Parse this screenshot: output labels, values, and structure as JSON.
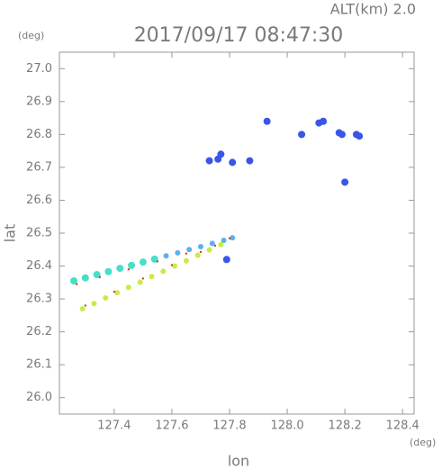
{
  "chart_data": {
    "type": "scatter",
    "title": "2017/09/17 08:47:30",
    "subtitle": "ALT(km)  2.0",
    "x_label": "lon",
    "y_label": "lat",
    "x_unit": "(deg)",
    "y_unit": "(deg)",
    "xlim": [
      127.21,
      128.44
    ],
    "ylim": [
      25.95,
      27.05
    ],
    "xticks": [
      127.4,
      127.6,
      127.8,
      {
        "value": 128.0,
        "label": "128.0"
      },
      128.2,
      128.4
    ],
    "yticks": [
      {
        "value": 26.0,
        "label": "26.0"
      },
      26.1,
      26.2,
      26.3,
      26.4,
      26.5,
      26.6,
      26.7,
      26.8,
      26.9,
      {
        "value": 27.0,
        "label": "27.0"
      }
    ],
    "series": [
      {
        "color": "#3a55e8",
        "size": 4,
        "x": [
          128.11,
          128.125,
          128.18,
          128.19,
          128.24,
          128.25,
          127.77,
          127.76,
          127.81,
          127.93,
          128.2,
          127.79,
          127.73,
          128.05,
          127.87
        ],
        "values": [
          26.835,
          26.84,
          26.805,
          26.8,
          26.8,
          26.795,
          26.74,
          26.725,
          26.715,
          26.84,
          26.655,
          26.42,
          26.72,
          26.8,
          26.72
        ]
      },
      {
        "color": "#44e0c8",
        "size": 4,
        "x": [
          127.26,
          127.3,
          127.34,
          127.38,
          127.42,
          127.46,
          127.5,
          127.54
        ],
        "values": [
          26.355,
          26.364,
          26.374,
          26.383,
          26.393,
          26.402,
          26.412,
          26.421
        ]
      },
      {
        "color": "#5ab0f0",
        "size": 3,
        "x": [
          127.58,
          127.62,
          127.66,
          127.7,
          127.74,
          127.78,
          127.81
        ],
        "values": [
          26.431,
          26.44,
          26.45,
          26.459,
          26.469,
          26.478,
          26.486
        ]
      },
      {
        "color": "#c8ec46",
        "size": 3,
        "x": [
          127.29,
          127.33,
          127.37,
          127.41,
          127.45,
          127.49,
          127.53,
          127.57,
          127.61,
          127.65,
          127.69,
          127.73,
          127.77
        ],
        "values": [
          26.27,
          26.286,
          26.303,
          26.319,
          26.335,
          26.351,
          26.368,
          26.384,
          26.4,
          26.416,
          26.433,
          26.449,
          26.465
        ]
      },
      {
        "color": "#e03818",
        "size": 1.2,
        "x": [
          127.27,
          127.35,
          127.45,
          127.55,
          127.65,
          127.75,
          127.3,
          127.4,
          127.5,
          127.6,
          127.7,
          127.8
        ],
        "values": [
          26.345,
          26.366,
          26.39,
          26.414,
          26.438,
          26.462,
          26.28,
          26.322,
          26.362,
          26.403,
          26.443,
          26.484
        ]
      }
    ]
  }
}
